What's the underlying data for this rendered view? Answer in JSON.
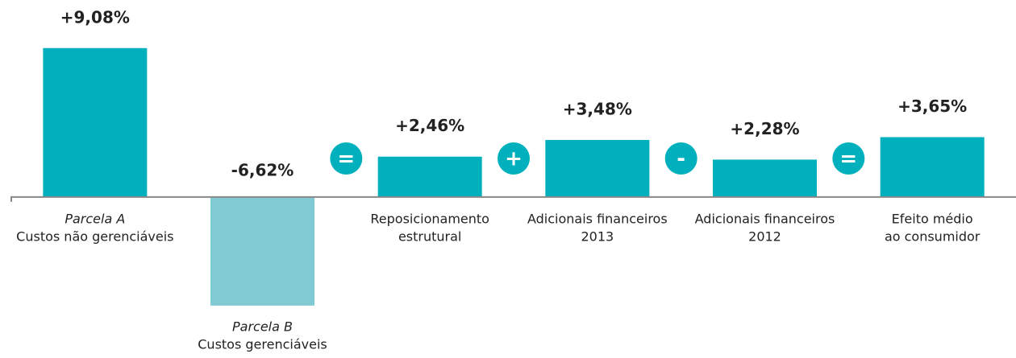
{
  "chart_data": {
    "type": "bar",
    "categories": [
      [
        "Parcela A",
        "Custos não gerenciáveis"
      ],
      [
        "Parcela B",
        "Custos gerenciáveis"
      ],
      [
        "Reposicionamento",
        "estrutural"
      ],
      [
        "Adicionais financeiros",
        "2013"
      ],
      [
        "Adicionais financeiros",
        "2012"
      ],
      [
        "Efeito médio",
        "ao consumidor"
      ]
    ],
    "italic_first_line": [
      true,
      true,
      false,
      false,
      false,
      false
    ],
    "values": [
      9.08,
      -6.62,
      2.46,
      3.48,
      2.28,
      3.65
    ],
    "value_labels": [
      "+9,08%",
      "-6,62%",
      "+2,46%",
      "+3,48%",
      "+2,28%",
      "+3,65%"
    ],
    "colors": [
      "#00b0bd",
      "#80cbd3",
      "#00b0bd",
      "#00b0bd",
      "#00b0bd",
      "#00b0bd"
    ],
    "operators": [
      "=",
      "+",
      "-",
      "="
    ],
    "operator_color": "#00b0bd",
    "ylim": [
      -8,
      10
    ]
  }
}
